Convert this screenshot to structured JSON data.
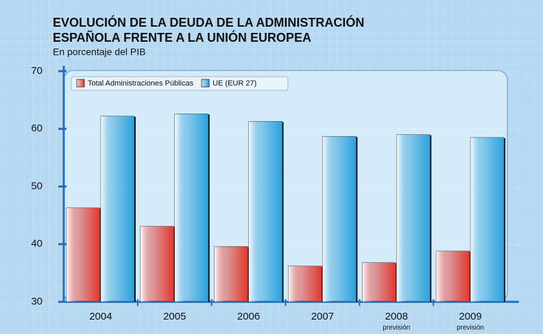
{
  "chart_data": {
    "type": "bar",
    "title": [
      "EVOLUCIÓN DE LA DEUDA DE LA ADMINISTRACIÓN",
      "ESPAÑOLA FRENTE A LA UNIÓN EUROPEA"
    ],
    "subtitle": "En porcentaje del PIB",
    "categories": [
      "2004",
      "2005",
      "2006",
      "2007",
      "2008",
      "2009"
    ],
    "category_sublabels": [
      null,
      null,
      null,
      null,
      "previsión",
      "previsión"
    ],
    "series": [
      {
        "name": "Total Administraciones Públicas",
        "color": "#e2372c",
        "values": [
          46.3,
          43.1,
          39.6,
          36.2,
          36.8,
          38.8
        ]
      },
      {
        "name": "UE (EUR 27)",
        "color": "#2aa2dc",
        "values": [
          62.2,
          62.6,
          61.3,
          58.7,
          59.0,
          58.5
        ]
      }
    ],
    "ylim": [
      30,
      70
    ],
    "yticks": [
      30,
      40,
      50,
      60,
      70
    ],
    "grid": true,
    "legend": "top-left"
  }
}
